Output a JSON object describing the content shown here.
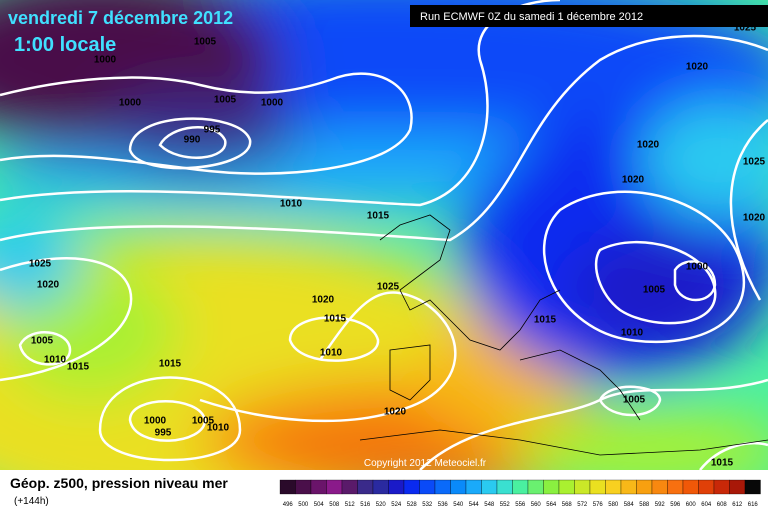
{
  "header": {
    "date": "vendredi 7 décembre 2012",
    "time": "1:00 locale",
    "run": "Run ECMWF 0Z du samedi 1 décembre 2012"
  },
  "copyright": "Copyright 2012 Meteociel.fr",
  "footer": {
    "title": "Géop. z500, pression niveau mer",
    "lead": "(+144h)"
  },
  "isobar_labels": [
    "1005",
    "1000",
    "1000",
    "1005",
    "1000",
    "995",
    "990",
    "1010",
    "1015",
    "1025",
    "1020",
    "1025",
    "1020",
    "1015",
    "1010",
    "1005",
    "1010",
    "1015",
    "1015",
    "1000",
    "995",
    "1005",
    "1010",
    "1020",
    "1015",
    "1010",
    "1005",
    "1000",
    "1020",
    "1020",
    "1020",
    "1025",
    "1025",
    "1020",
    "1005",
    "1015"
  ],
  "scale": {
    "labels": [
      "496",
      "500",
      "504",
      "508",
      "512",
      "516",
      "520",
      "524",
      "528",
      "532",
      "536",
      "540",
      "544",
      "548",
      "552",
      "556",
      "560",
      "564",
      "568",
      "572",
      "576",
      "580",
      "584",
      "588",
      "592",
      "596",
      "600",
      "604",
      "608",
      "612",
      "616"
    ],
    "colors": [
      "#2a0a2a",
      "#4a0f4a",
      "#6a146a",
      "#8a1a8a",
      "#5a1a6a",
      "#3a2a8a",
      "#2a2aa0",
      "#1a1ac8",
      "#0a2af0",
      "#0a4af8",
      "#0a6afa",
      "#0a8afa",
      "#1aaafa",
      "#2acaf0",
      "#3ae0d0",
      "#4af0a0",
      "#6af070",
      "#8af040",
      "#aaf030",
      "#cae828",
      "#eae020",
      "#f8d020",
      "#f8b818",
      "#f8a010",
      "#f88810",
      "#f87010",
      "#f05808",
      "#e04008",
      "#c82808",
      "#a81808",
      "#080808"
    ]
  }
}
